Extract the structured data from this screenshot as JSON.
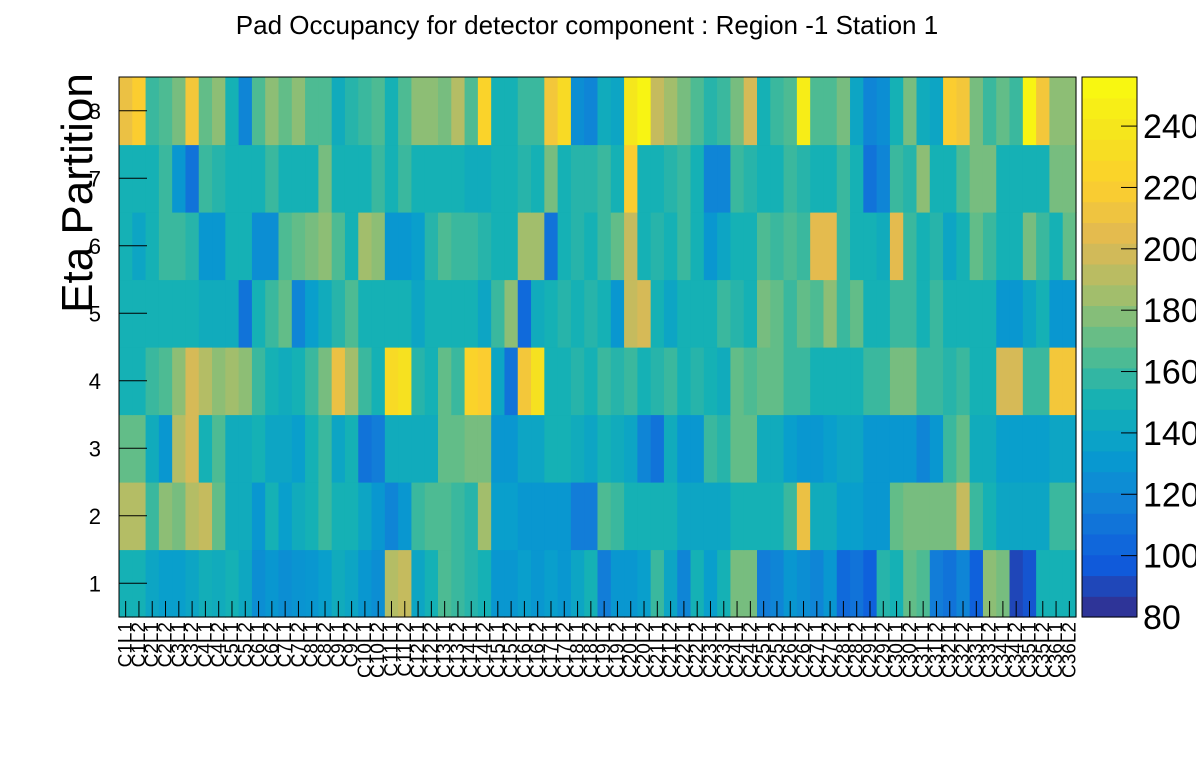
{
  "chart_data": {
    "type": "heatmap",
    "title": "Pad Occupancy for detector component : Region -1 Station 1",
    "xlabel": "",
    "ylabel": "Eta Partition",
    "x_categories": [
      "C1L1",
      "C1L2",
      "C2L1",
      "C2L2",
      "C3L1",
      "C3L2",
      "C4L1",
      "C4L2",
      "C5L1",
      "C5L2",
      "C6L1",
      "C6L2",
      "C7L1",
      "C7L2",
      "C8L1",
      "C8L2",
      "C9L1",
      "C9L2",
      "C10L1",
      "C10L2",
      "C11L1",
      "C11L2",
      "C12L1",
      "C12L2",
      "C13L1",
      "C13L2",
      "C14L1",
      "C14L2",
      "C15L1",
      "C15L2",
      "C16L1",
      "C16L2",
      "C17L1",
      "C17L2",
      "C18L1",
      "C18L2",
      "C19L1",
      "C19L2",
      "C20L1",
      "C20L2",
      "C21L1",
      "C21L2",
      "C22L1",
      "C22L2",
      "C23L1",
      "C23L2",
      "C24L1",
      "C24L2",
      "C25L1",
      "C25L2",
      "C26L1",
      "C26L2",
      "C27L1",
      "C27L2",
      "C28L1",
      "C28L2",
      "C29L1",
      "C29L2",
      "C30L1",
      "C30L2",
      "C31L1",
      "C31L2",
      "C32L1",
      "C32L2",
      "C33L1",
      "C33L2",
      "C34L1",
      "C34L2",
      "C35L1",
      "C35L2",
      "C36L1",
      "C36L2"
    ],
    "y_categories": [
      "1",
      "2",
      "3",
      "4",
      "5",
      "6",
      "7",
      "8"
    ],
    "zlim": [
      80,
      256
    ],
    "z_ticks": [
      "80",
      "100",
      "120",
      "140",
      "160",
      "180",
      "200",
      "220",
      "240"
    ],
    "colormap": "parula",
    "values": [
      [
        150,
        150,
        140,
        135,
        135,
        140,
        148,
        145,
        150,
        142,
        125,
        130,
        125,
        128,
        130,
        135,
        145,
        140,
        130,
        125,
        190,
        195,
        140,
        150,
        165,
        160,
        155,
        150,
        130,
        130,
        135,
        130,
        135,
        130,
        140,
        150,
        115,
        130,
        130,
        135,
        160,
        140,
        120,
        150,
        135,
        150,
        175,
        175,
        115,
        120,
        130,
        125,
        120,
        130,
        105,
        110,
        100,
        155,
        150,
        170,
        165,
        115,
        110,
        120,
        100,
        180,
        175,
        90,
        95,
        150,
        150,
        150
      ],
      [
        190,
        190,
        160,
        180,
        175,
        190,
        195,
        170,
        145,
        145,
        130,
        150,
        135,
        145,
        150,
        160,
        150,
        150,
        140,
        130,
        120,
        130,
        160,
        165,
        165,
        160,
        155,
        185,
        135,
        135,
        130,
        130,
        130,
        130,
        115,
        115,
        165,
        160,
        150,
        150,
        150,
        150,
        140,
        140,
        140,
        140,
        150,
        150,
        150,
        150,
        160,
        210,
        145,
        145,
        135,
        135,
        130,
        130,
        170,
        175,
        175,
        175,
        175,
        195,
        160,
        150,
        140,
        140,
        140,
        140,
        160,
        160
      ],
      [
        170,
        170,
        145,
        130,
        190,
        200,
        150,
        165,
        145,
        145,
        150,
        140,
        140,
        135,
        150,
        160,
        140,
        150,
        110,
        115,
        145,
        145,
        145,
        145,
        170,
        170,
        175,
        175,
        130,
        130,
        140,
        140,
        150,
        150,
        145,
        140,
        150,
        145,
        140,
        120,
        110,
        145,
        130,
        130,
        160,
        155,
        170,
        170,
        145,
        145,
        135,
        130,
        130,
        135,
        140,
        140,
        130,
        130,
        130,
        130,
        120,
        130,
        160,
        170,
        145,
        145,
        135,
        135,
        135,
        135,
        140,
        140
      ],
      [
        150,
        150,
        160,
        165,
        180,
        200,
        190,
        180,
        185,
        180,
        160,
        150,
        145,
        150,
        160,
        175,
        210,
        185,
        160,
        150,
        230,
        235,
        155,
        150,
        170,
        160,
        225,
        220,
        140,
        110,
        215,
        235,
        150,
        150,
        155,
        150,
        160,
        155,
        160,
        150,
        155,
        160,
        150,
        155,
        150,
        145,
        170,
        165,
        170,
        170,
        160,
        160,
        150,
        150,
        150,
        150,
        160,
        160,
        175,
        175,
        160,
        160,
        155,
        160,
        150,
        150,
        200,
        200,
        160,
        160,
        215,
        215
      ],
      [
        150,
        150,
        150,
        150,
        150,
        150,
        145,
        145,
        145,
        110,
        150,
        160,
        170,
        120,
        135,
        145,
        155,
        165,
        150,
        150,
        150,
        150,
        140,
        150,
        150,
        150,
        150,
        140,
        160,
        180,
        105,
        145,
        150,
        155,
        150,
        155,
        150,
        130,
        195,
        200,
        150,
        140,
        150,
        150,
        150,
        160,
        155,
        150,
        175,
        170,
        160,
        170,
        165,
        180,
        160,
        170,
        150,
        150,
        160,
        160,
        150,
        160,
        150,
        150,
        150,
        150,
        130,
        130,
        140,
        150,
        130,
        130
      ],
      [
        150,
        140,
        150,
        160,
        160,
        155,
        130,
        130,
        150,
        150,
        125,
        125,
        165,
        170,
        175,
        180,
        165,
        150,
        185,
        180,
        130,
        130,
        135,
        155,
        165,
        160,
        160,
        155,
        150,
        150,
        185,
        185,
        110,
        150,
        155,
        150,
        160,
        170,
        195,
        150,
        155,
        150,
        160,
        150,
        130,
        140,
        150,
        150,
        165,
        160,
        165,
        160,
        205,
        205,
        160,
        150,
        150,
        145,
        205,
        160,
        150,
        155,
        140,
        150,
        170,
        160,
        150,
        150,
        175,
        160,
        150,
        170
      ],
      [
        150,
        150,
        150,
        160,
        130,
        110,
        160,
        155,
        150,
        150,
        150,
        160,
        150,
        150,
        150,
        175,
        150,
        150,
        150,
        160,
        150,
        160,
        150,
        150,
        150,
        150,
        145,
        145,
        150,
        150,
        155,
        150,
        175,
        150,
        155,
        155,
        160,
        150,
        220,
        150,
        150,
        155,
        160,
        150,
        120,
        120,
        160,
        155,
        150,
        150,
        160,
        155,
        150,
        150,
        160,
        150,
        110,
        120,
        160,
        155,
        180,
        150,
        150,
        165,
        175,
        175,
        150,
        150,
        150,
        150,
        175,
        175
      ],
      [
        210,
        220,
        160,
        165,
        175,
        215,
        170,
        180,
        150,
        120,
        165,
        180,
        170,
        180,
        165,
        165,
        145,
        155,
        160,
        165,
        150,
        165,
        180,
        180,
        175,
        190,
        165,
        225,
        150,
        150,
        160,
        160,
        215,
        230,
        125,
        120,
        145,
        140,
        240,
        250,
        195,
        185,
        175,
        165,
        155,
        160,
        175,
        200,
        150,
        160,
        165,
        245,
        165,
        165,
        175,
        140,
        120,
        125,
        150,
        175,
        145,
        140,
        220,
        215,
        175,
        160,
        170,
        160,
        250,
        215,
        180,
        180
      ]
    ]
  }
}
